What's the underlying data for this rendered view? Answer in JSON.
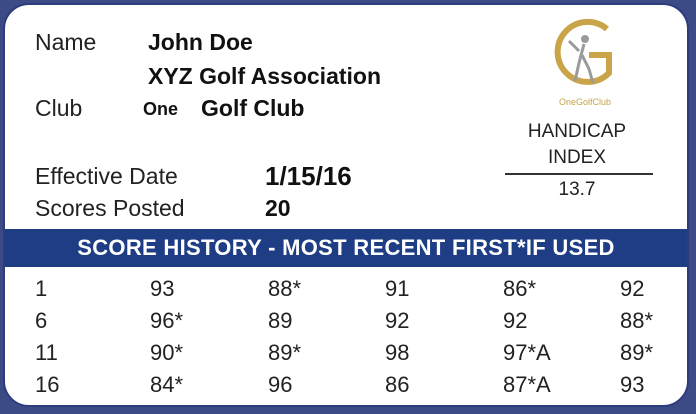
{
  "fields": {
    "name_label": "Name",
    "name_value": "John Doe",
    "association_value": "XYZ Golf Association",
    "club_label": "Club",
    "club_prefix": "One",
    "club_value": "Golf Club",
    "effective_label": "Effective Date",
    "effective_value": "1/15/16",
    "scores_label": "Scores Posted",
    "scores_value": "20"
  },
  "logo": {
    "caption": "OneGolfClub",
    "accent": "#c9a448"
  },
  "handicap": {
    "line1": "HANDICAP",
    "line2": "INDEX",
    "value": "13.7"
  },
  "banner": {
    "text": "SCORE HISTORY - MOST RECENT FIRST*IF USED",
    "color": "#1f3d84"
  },
  "score_rows": [
    [
      "1",
      "93",
      "88*",
      "91",
      "86*",
      "92"
    ],
    [
      "6",
      "96*",
      "89",
      "92",
      "92",
      "88*"
    ],
    [
      "11",
      "90*",
      "89*",
      "98",
      "97*A",
      "89*"
    ],
    [
      "16",
      "84*",
      "96",
      "86",
      "87*A",
      "93"
    ]
  ]
}
